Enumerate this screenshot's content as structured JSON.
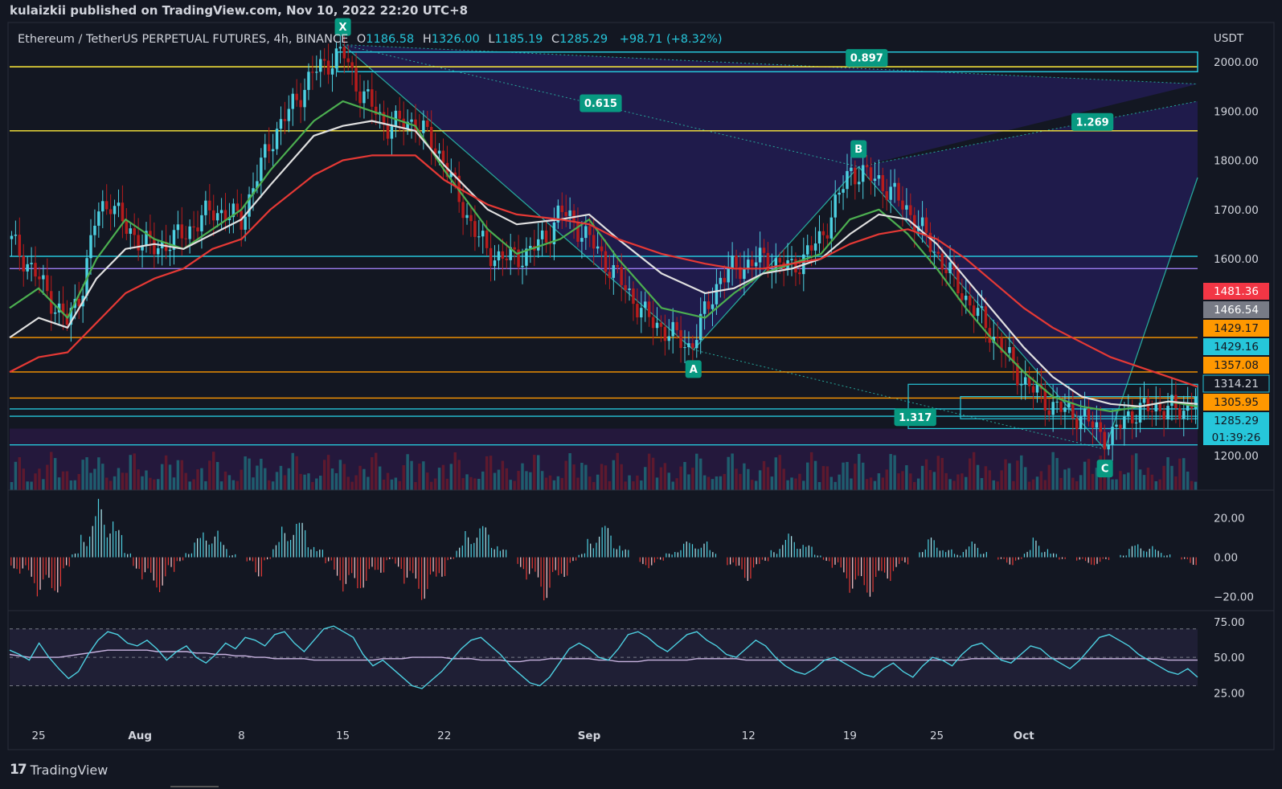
{
  "publisher": "kulaizkii published on TradingView.com, Nov 10, 2022 22:20 UTC+8",
  "legend": {
    "symbol": "Ethereum / TetherUS PERPETUAL FUTURES, 4h, BINANCE",
    "o_label": "O",
    "o": "1186.58",
    "h_label": "H",
    "h": "1326.00",
    "l_label": "L",
    "l": "1185.19",
    "c_label": "C",
    "c": "1285.29",
    "change": "+98.71 (+8.32%)"
  },
  "currency": "USDT",
  "footer_brand": "TradingView",
  "colors": {
    "background": "#131722",
    "up": "#26a69a",
    "down": "#ef5350",
    "candle_up": "#4dd0e1",
    "candle_down": "#b71c1c",
    "ema_fast": "#4caf50",
    "ema_mid": "#e0e0e0",
    "ema_slow": "#e53935",
    "level_cyan": "#26c6da",
    "level_yellow": "#ffeb3b",
    "level_orange": "#ff9800",
    "harmonic_fill": "#2a1f6e",
    "rsi": "#4dd0e1"
  },
  "chart_data": {
    "type": "candlestick",
    "title": "Ethereum / TetherUS PERPETUAL FUTURES, 4h, BINANCE",
    "ylabel": "USDT",
    "ylim": [
      1130,
      2080
    ],
    "y_ticks": [
      "2000.00",
      "1900.00",
      "1800.00",
      "1700.00",
      "1600.00",
      "1200.00"
    ],
    "x_ticks": [
      "25",
      "Aug",
      "8",
      "15",
      "22",
      "Sep",
      "12",
      "19",
      "25",
      "Oct"
    ],
    "x_range_days": [
      -2.0,
      80.0
    ],
    "x_tick_days": [
      0,
      7,
      14,
      21,
      28,
      38,
      49,
      56,
      62,
      68
    ],
    "price_path": [
      [
        -2,
        1640
      ],
      [
        0,
        1560
      ],
      [
        1,
        1510
      ],
      [
        2,
        1470
      ],
      [
        3,
        1540
      ],
      [
        4,
        1690
      ],
      [
        5,
        1720
      ],
      [
        6,
        1660
      ],
      [
        8,
        1620
      ],
      [
        10,
        1650
      ],
      [
        12,
        1700
      ],
      [
        14,
        1680
      ],
      [
        16,
        1840
      ],
      [
        19,
        1980
      ],
      [
        21,
        2020
      ],
      [
        22,
        1950
      ],
      [
        24,
        1870
      ],
      [
        26,
        1880
      ],
      [
        28,
        1800
      ],
      [
        29,
        1720
      ],
      [
        31,
        1610
      ],
      [
        33,
        1600
      ],
      [
        35,
        1640
      ],
      [
        36,
        1700
      ],
      [
        38,
        1640
      ],
      [
        40,
        1560
      ],
      [
        42,
        1480
      ],
      [
        44,
        1440
      ],
      [
        45,
        1420
      ],
      [
        47,
        1560
      ],
      [
        48,
        1580
      ],
      [
        50,
        1600
      ],
      [
        52,
        1580
      ],
      [
        54,
        1640
      ],
      [
        56,
        1780
      ],
      [
        58,
        1760
      ],
      [
        60,
        1700
      ],
      [
        62,
        1610
      ],
      [
        64,
        1520
      ],
      [
        66,
        1440
      ],
      [
        68,
        1350
      ],
      [
        70,
        1300
      ],
      [
        72,
        1280
      ],
      [
        74,
        1230
      ],
      [
        75,
        1280
      ],
      [
        77,
        1300
      ],
      [
        79,
        1290
      ],
      [
        80,
        1330
      ]
    ],
    "moving_averages": [
      {
        "name": "EMA fast",
        "color": "#4caf50",
        "points": [
          [
            -2,
            1500
          ],
          [
            0,
            1540
          ],
          [
            2,
            1480
          ],
          [
            4,
            1600
          ],
          [
            6,
            1680
          ],
          [
            8,
            1640
          ],
          [
            10,
            1620
          ],
          [
            12,
            1660
          ],
          [
            14,
            1700
          ],
          [
            16,
            1780
          ],
          [
            19,
            1880
          ],
          [
            21,
            1920
          ],
          [
            23,
            1900
          ],
          [
            26,
            1870
          ],
          [
            28,
            1780
          ],
          [
            31,
            1660
          ],
          [
            33,
            1610
          ],
          [
            36,
            1640
          ],
          [
            38,
            1680
          ],
          [
            40,
            1600
          ],
          [
            43,
            1500
          ],
          [
            46,
            1480
          ],
          [
            48,
            1530
          ],
          [
            50,
            1570
          ],
          [
            52,
            1590
          ],
          [
            54,
            1610
          ],
          [
            56,
            1680
          ],
          [
            58,
            1700
          ],
          [
            60,
            1650
          ],
          [
            62,
            1580
          ],
          [
            64,
            1500
          ],
          [
            66,
            1430
          ],
          [
            68,
            1370
          ],
          [
            70,
            1320
          ],
          [
            72,
            1300
          ],
          [
            74,
            1290
          ],
          [
            76,
            1300
          ],
          [
            78,
            1310
          ],
          [
            80,
            1300
          ]
        ]
      },
      {
        "name": "EMA mid",
        "color": "#e0e0e0",
        "points": [
          [
            -2,
            1440
          ],
          [
            0,
            1480
          ],
          [
            2,
            1460
          ],
          [
            4,
            1560
          ],
          [
            6,
            1620
          ],
          [
            8,
            1630
          ],
          [
            10,
            1620
          ],
          [
            12,
            1650
          ],
          [
            14,
            1680
          ],
          [
            16,
            1750
          ],
          [
            19,
            1850
          ],
          [
            21,
            1870
          ],
          [
            23,
            1880
          ],
          [
            26,
            1860
          ],
          [
            28,
            1790
          ],
          [
            31,
            1700
          ],
          [
            33,
            1670
          ],
          [
            36,
            1680
          ],
          [
            38,
            1690
          ],
          [
            40,
            1640
          ],
          [
            43,
            1570
          ],
          [
            46,
            1530
          ],
          [
            48,
            1540
          ],
          [
            50,
            1570
          ],
          [
            52,
            1580
          ],
          [
            54,
            1600
          ],
          [
            56,
            1650
          ],
          [
            58,
            1690
          ],
          [
            60,
            1680
          ],
          [
            62,
            1630
          ],
          [
            64,
            1560
          ],
          [
            66,
            1490
          ],
          [
            68,
            1420
          ],
          [
            70,
            1360
          ],
          [
            72,
            1320
          ],
          [
            74,
            1305
          ],
          [
            76,
            1300
          ],
          [
            78,
            1310
          ],
          [
            80,
            1305
          ]
        ]
      },
      {
        "name": "EMA slow",
        "color": "#e53935",
        "points": [
          [
            -2,
            1370
          ],
          [
            0,
            1400
          ],
          [
            2,
            1410
          ],
          [
            4,
            1470
          ],
          [
            6,
            1530
          ],
          [
            8,
            1560
          ],
          [
            10,
            1580
          ],
          [
            12,
            1620
          ],
          [
            14,
            1640
          ],
          [
            16,
            1700
          ],
          [
            19,
            1770
          ],
          [
            21,
            1800
          ],
          [
            23,
            1810
          ],
          [
            26,
            1810
          ],
          [
            28,
            1760
          ],
          [
            31,
            1710
          ],
          [
            33,
            1690
          ],
          [
            36,
            1680
          ],
          [
            38,
            1670
          ],
          [
            40,
            1640
          ],
          [
            43,
            1610
          ],
          [
            46,
            1590
          ],
          [
            48,
            1580
          ],
          [
            50,
            1580
          ],
          [
            52,
            1590
          ],
          [
            54,
            1600
          ],
          [
            56,
            1630
          ],
          [
            58,
            1650
          ],
          [
            60,
            1660
          ],
          [
            62,
            1640
          ],
          [
            64,
            1600
          ],
          [
            66,
            1550
          ],
          [
            68,
            1500
          ],
          [
            70,
            1460
          ],
          [
            72,
            1430
          ],
          [
            74,
            1400
          ],
          [
            76,
            1380
          ],
          [
            78,
            1360
          ],
          [
            80,
            1340
          ]
        ]
      }
    ],
    "price_labels": [
      {
        "value": "1481.36",
        "bg": "#f23645",
        "fg": "#ffffff"
      },
      {
        "value": "1466.54",
        "bg": "#787b86",
        "fg": "#ffffff"
      },
      {
        "value": "1429.17",
        "bg": "#ff9800",
        "fg": "#131722"
      },
      {
        "value": "1429.16",
        "bg": "#26c6da",
        "fg": "#131722"
      },
      {
        "value": "1357.08",
        "bg": "#ff9800",
        "fg": "#131722"
      },
      {
        "value": "1314.21",
        "bg": "#131722",
        "fg": "#d1d4dc",
        "border": "#26c6da"
      },
      {
        "value": "1305.95",
        "bg": "#ff9800",
        "fg": "#131722"
      },
      {
        "value": "1285.29",
        "bg": "#26c6da",
        "fg": "#131722"
      }
    ],
    "countdown": "01:39:26",
    "harmonic": {
      "points": [
        {
          "label": "X",
          "day": 21.0,
          "price": 2035
        },
        {
          "label": "A",
          "day": 45.2,
          "price": 1415
        },
        {
          "label": "B",
          "day": 56.6,
          "price": 1787
        },
        {
          "label": "C",
          "day": 73.6,
          "price": 1213
        }
      ],
      "ratios": [
        "0.615",
        "1.269",
        "1.317",
        "0.897"
      ]
    },
    "levels": [
      {
        "price": 1990,
        "color": "#ffeb3b"
      },
      {
        "price": 1860,
        "color": "#ffeb3b"
      },
      {
        "price": 1605,
        "color": "#26c6da"
      },
      {
        "price": 1580,
        "color": "#9c7cf0"
      },
      {
        "price": 1440,
        "color": "#ff9800"
      },
      {
        "price": 1370,
        "color": "#ff9800"
      },
      {
        "price": 1317,
        "color": "#ff9800"
      },
      {
        "price": 1295,
        "color": "#26c6da"
      },
      {
        "price": 1280,
        "color": "#26c6da"
      },
      {
        "price": 1222,
        "color": "#26c6da"
      }
    ],
    "momentum": {
      "y_ticks": [
        "20.00",
        "0.00",
        "−20.00"
      ],
      "ylim": [
        -25,
        32
      ],
      "values": [
        -6,
        -10,
        -14,
        -20,
        -22,
        -18,
        -10,
        2,
        14,
        22,
        30,
        25,
        14,
        4,
        -6,
        -14,
        -16,
        -18,
        -10,
        -2,
        4,
        10,
        16,
        14,
        8,
        2,
        0,
        -4,
        -10,
        -2,
        8,
        16,
        22,
        18,
        10,
        4,
        -4,
        -12,
        -18,
        -20,
        -16,
        -12,
        -8,
        -2,
        -6,
        -14,
        -20,
        -22,
        -18,
        -10,
        -2,
        6,
        14,
        18,
        16,
        10,
        4,
        0,
        -6,
        -12,
        -18,
        -22,
        -16,
        -10,
        -4,
        2,
        10,
        18,
        16,
        10,
        4,
        0,
        -4,
        -6,
        -2,
        2,
        6,
        8,
        10,
        8,
        4,
        0,
        -4,
        -10,
        -12,
        -8,
        -2,
        4,
        10,
        12,
        10,
        6,
        2,
        -2,
        -6,
        -12,
        -18,
        -22,
        -20,
        -16,
        -12,
        -8,
        -4,
        0,
        6,
        10,
        8,
        4,
        2,
        6,
        8,
        4,
        0,
        -2,
        -4,
        -2,
        4,
        10,
        6,
        2,
        -2,
        0,
        -2,
        -4,
        -4,
        -2,
        0,
        2,
        6,
        8,
        6,
        4,
        2,
        0,
        -2,
        -4
      ]
    },
    "rsi": {
      "y_ticks": [
        "75.00",
        "50.00",
        "25.00"
      ],
      "ylim": [
        15,
        80
      ],
      "bands": [
        70,
        30
      ],
      "values": [
        55,
        52,
        48,
        60,
        50,
        42,
        35,
        40,
        52,
        62,
        68,
        66,
        60,
        58,
        62,
        56,
        48,
        54,
        58,
        50,
        46,
        52,
        60,
        56,
        64,
        62,
        58,
        66,
        68,
        60,
        54,
        62,
        70,
        72,
        68,
        64,
        52,
        44,
        48,
        42,
        36,
        30,
        28,
        34,
        40,
        48,
        56,
        62,
        64,
        58,
        52,
        44,
        38,
        32,
        30,
        36,
        46,
        56,
        60,
        56,
        50,
        48,
        56,
        66,
        68,
        64,
        58,
        54,
        60,
        66,
        68,
        62,
        58,
        52,
        50,
        56,
        62,
        58,
        50,
        44,
        40,
        38,
        42,
        48,
        50,
        46,
        42,
        38,
        36,
        42,
        46,
        40,
        36,
        44,
        50,
        48,
        44,
        52,
        58,
        60,
        54,
        48,
        46,
        52,
        58,
        56,
        50,
        46,
        42,
        48,
        56,
        64,
        66,
        62,
        58,
        52,
        48,
        44,
        40,
        38,
        42,
        36
      ],
      "signal": [
        52,
        51,
        50,
        50,
        50,
        50,
        51,
        52,
        53,
        54,
        55,
        55,
        55,
        55,
        55,
        54,
        54,
        54,
        54,
        53,
        53,
        52,
        52,
        51,
        51,
        50,
        50,
        49,
        49,
        49,
        49,
        48,
        48,
        48,
        48,
        48,
        48,
        48,
        49,
        49,
        49,
        50,
        50,
        50,
        50,
        49,
        49,
        49,
        48,
        48,
        48,
        47,
        47,
        48,
        48,
        49,
        49,
        49,
        49,
        49,
        48,
        48,
        47,
        47,
        47,
        48,
        48,
        48,
        48,
        48,
        49,
        49,
        49,
        49,
        49,
        48,
        48,
        48,
        48,
        48,
        48,
        48,
        48,
        48,
        48,
        48,
        48,
        48,
        48,
        48,
        48,
        48,
        48,
        48,
        48,
        48,
        48,
        48,
        49,
        49,
        49,
        49,
        49,
        49,
        49,
        49,
        49,
        49,
        49,
        49,
        49,
        49,
        49,
        49,
        49,
        49,
        49,
        49,
        48,
        48,
        48,
        48
      ]
    }
  }
}
